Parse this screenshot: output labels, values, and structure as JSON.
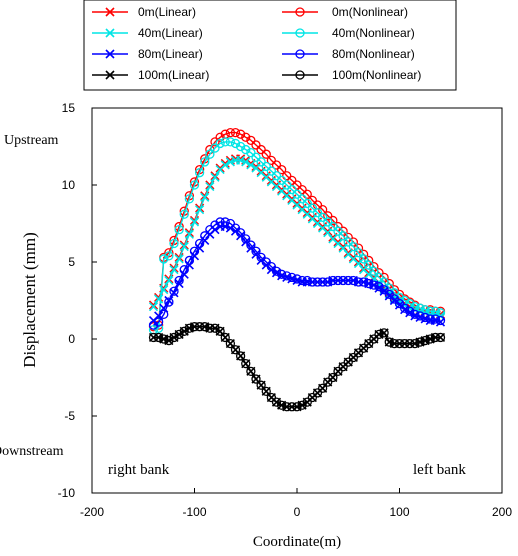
{
  "chart_data": {
    "type": "line",
    "xlabel": "Coordinate(m)",
    "ylabel": "Displacement (mm)",
    "xlim": [
      -200,
      200
    ],
    "ylim": [
      -10,
      15
    ],
    "x_ticks": [
      -200,
      -100,
      0,
      100,
      200
    ],
    "y_ticks": [
      -10,
      -5,
      0,
      5,
      10,
      15
    ],
    "grid": false,
    "legend_position": "top",
    "annotations": {
      "upstream": "Upstream",
      "downstream": "Downstream",
      "right_bank": "right bank",
      "left_bank": "left bank"
    },
    "series": [
      {
        "name": "0m(Linear)",
        "color": "#ff0000",
        "marker": "x",
        "x": [
          -140,
          -135,
          -130,
          -125,
          -120,
          -115,
          -110,
          -105,
          -100,
          -95,
          -90,
          -85,
          -80,
          -75,
          -70,
          -65,
          -60,
          -55,
          -50,
          -45,
          -40,
          -35,
          -30,
          -25,
          -20,
          -15,
          -10,
          -5,
          0,
          5,
          10,
          15,
          20,
          25,
          30,
          35,
          40,
          45,
          50,
          55,
          60,
          65,
          70,
          75,
          80,
          85,
          90,
          95,
          100,
          105,
          110,
          115,
          120,
          125,
          130,
          135,
          140
        ],
        "y": [
          2.2,
          2.7,
          3.3,
          3.9,
          4.6,
          5.3,
          6.1,
          6.9,
          7.7,
          8.5,
          9.3,
          10.0,
          10.6,
          11.1,
          11.4,
          11.6,
          11.7,
          11.7,
          11.6,
          11.4,
          11.2,
          10.9,
          10.6,
          10.3,
          10.0,
          9.7,
          9.4,
          9.1,
          8.8,
          8.5,
          8.2,
          7.9,
          7.6,
          7.3,
          7.0,
          6.6,
          6.3,
          6.0,
          5.6,
          5.3,
          5.0,
          4.6,
          4.3,
          4.0,
          3.6,
          3.3,
          3.0,
          2.7,
          2.5,
          2.3,
          2.1,
          2.0,
          1.9,
          1.8,
          1.7,
          1.7,
          1.6
        ]
      },
      {
        "name": "0m(Nonlinear)",
        "color": "#ff0000",
        "marker": "o",
        "x": [
          -140,
          -135,
          -130,
          -125,
          -120,
          -115,
          -110,
          -105,
          -100,
          -95,
          -90,
          -85,
          -80,
          -75,
          -70,
          -65,
          -60,
          -55,
          -50,
          -45,
          -40,
          -35,
          -30,
          -25,
          -20,
          -15,
          -10,
          -5,
          0,
          5,
          10,
          15,
          20,
          25,
          30,
          35,
          40,
          45,
          50,
          55,
          60,
          65,
          70,
          75,
          80,
          85,
          90,
          95,
          100,
          105,
          110,
          115,
          120,
          125,
          130,
          135,
          140
        ],
        "y": [
          0.8,
          0.9,
          5.3,
          5.6,
          6.4,
          7.3,
          8.3,
          9.3,
          10.2,
          11.0,
          11.7,
          12.3,
          12.8,
          13.1,
          13.3,
          13.4,
          13.4,
          13.3,
          13.1,
          12.9,
          12.6,
          12.3,
          12.0,
          11.6,
          11.3,
          11.0,
          10.6,
          10.3,
          10.0,
          9.7,
          9.4,
          9.0,
          8.7,
          8.4,
          8.0,
          7.7,
          7.3,
          7.0,
          6.6,
          6.3,
          5.9,
          5.5,
          5.1,
          4.7,
          4.3,
          4.0,
          3.6,
          3.2,
          2.9,
          2.6,
          2.4,
          2.2,
          2.0,
          1.9,
          1.9,
          1.8,
          1.8
        ]
      },
      {
        "name": "40m(Linear)",
        "color": "#00e5e5",
        "marker": "x",
        "x": [
          -140,
          -135,
          -130,
          -125,
          -120,
          -115,
          -110,
          -105,
          -100,
          -95,
          -90,
          -85,
          -80,
          -75,
          -70,
          -65,
          -60,
          -55,
          -50,
          -45,
          -40,
          -35,
          -30,
          -25,
          -20,
          -15,
          -10,
          -5,
          0,
          5,
          10,
          15,
          20,
          25,
          30,
          35,
          40,
          45,
          50,
          55,
          60,
          65,
          70,
          75,
          80,
          85,
          90,
          95,
          100,
          105,
          110,
          115,
          120,
          125,
          130,
          135,
          140
        ],
        "y": [
          2.1,
          2.6,
          3.2,
          3.8,
          4.5,
          5.2,
          6.0,
          6.8,
          7.6,
          8.4,
          9.2,
          9.9,
          10.5,
          11.0,
          11.3,
          11.5,
          11.6,
          11.6,
          11.5,
          11.3,
          11.1,
          10.8,
          10.5,
          10.2,
          9.9,
          9.6,
          9.3,
          9.0,
          8.7,
          8.4,
          8.1,
          7.8,
          7.5,
          7.2,
          6.9,
          6.5,
          6.2,
          5.9,
          5.5,
          5.2,
          4.9,
          4.5,
          4.2,
          3.9,
          3.5,
          3.2,
          2.9,
          2.6,
          2.4,
          2.2,
          2.0,
          1.9,
          1.8,
          1.7,
          1.6,
          1.6,
          1.5
        ]
      },
      {
        "name": "40m(Nonlinear)",
        "color": "#00e5e5",
        "marker": "o",
        "x": [
          -140,
          -135,
          -130,
          -125,
          -120,
          -115,
          -110,
          -105,
          -100,
          -95,
          -90,
          -85,
          -80,
          -75,
          -70,
          -65,
          -60,
          -55,
          -50,
          -45,
          -40,
          -35,
          -30,
          -25,
          -20,
          -15,
          -10,
          -5,
          0,
          5,
          10,
          15,
          20,
          25,
          30,
          35,
          40,
          45,
          50,
          55,
          60,
          65,
          70,
          75,
          80,
          85,
          90,
          95,
          100,
          105,
          110,
          115,
          120,
          125,
          130,
          135,
          140
        ],
        "y": [
          0.6,
          0.7,
          5.2,
          5.4,
          6.2,
          7.1,
          8.1,
          9.1,
          10.0,
          10.8,
          11.5,
          12.0,
          12.4,
          12.7,
          12.8,
          12.8,
          12.7,
          12.5,
          12.3,
          12.1,
          11.8,
          11.5,
          11.2,
          10.9,
          10.6,
          10.3,
          10.0,
          9.7,
          9.4,
          9.1,
          8.8,
          8.5,
          8.2,
          7.9,
          7.6,
          7.3,
          7.0,
          6.7,
          6.3,
          6.0,
          5.6,
          5.2,
          4.8,
          4.4,
          4.0,
          3.7,
          3.3,
          3.0,
          2.7,
          2.5,
          2.3,
          2.1,
          2.0,
          1.9,
          1.8,
          1.8,
          1.7
        ]
      },
      {
        "name": "80m(Linear)",
        "color": "#0000ff",
        "marker": "x",
        "x": [
          -140,
          -135,
          -130,
          -125,
          -120,
          -115,
          -110,
          -105,
          -100,
          -95,
          -90,
          -85,
          -80,
          -75,
          -70,
          -65,
          -60,
          -55,
          -50,
          -45,
          -40,
          -35,
          -30,
          -25,
          -20,
          -15,
          -10,
          -5,
          0,
          5,
          10,
          15,
          20,
          25,
          30,
          35,
          40,
          45,
          50,
          55,
          60,
          65,
          70,
          75,
          80,
          85,
          90,
          95,
          100,
          105,
          110,
          115,
          120,
          125,
          130,
          135,
          140
        ],
        "y": [
          1.2,
          1.5,
          2.0,
          2.5,
          3.0,
          3.6,
          4.2,
          4.8,
          5.4,
          5.9,
          6.4,
          6.8,
          7.1,
          7.3,
          7.3,
          7.2,
          7.0,
          6.7,
          6.3,
          5.9,
          5.5,
          5.1,
          4.8,
          4.5,
          4.3,
          4.1,
          4.0,
          3.9,
          3.8,
          3.7,
          3.7,
          3.7,
          3.7,
          3.7,
          3.7,
          3.8,
          3.8,
          3.8,
          3.8,
          3.8,
          3.7,
          3.7,
          3.6,
          3.5,
          3.3,
          3.1,
          2.8,
          2.5,
          2.2,
          1.9,
          1.7,
          1.5,
          1.4,
          1.3,
          1.2,
          1.2,
          1.1
        ]
      },
      {
        "name": "80m(Nonlinear)",
        "color": "#0000ff",
        "marker": "o",
        "x": [
          -140,
          -135,
          -130,
          -125,
          -120,
          -115,
          -110,
          -105,
          -100,
          -95,
          -90,
          -85,
          -80,
          -75,
          -70,
          -65,
          -60,
          -55,
          -50,
          -45,
          -40,
          -35,
          -30,
          -25,
          -20,
          -15,
          -10,
          -5,
          0,
          5,
          10,
          15,
          20,
          25,
          30,
          35,
          40,
          45,
          50,
          55,
          60,
          65,
          70,
          75,
          80,
          85,
          90,
          95,
          100,
          105,
          110,
          115,
          120,
          125,
          130,
          135,
          140
        ],
        "y": [
          0.9,
          1.1,
          1.6,
          2.4,
          3.1,
          3.8,
          4.5,
          5.1,
          5.7,
          6.2,
          6.7,
          7.1,
          7.4,
          7.6,
          7.6,
          7.5,
          7.2,
          6.9,
          6.5,
          6.1,
          5.7,
          5.3,
          5.0,
          4.7,
          4.4,
          4.2,
          4.1,
          4.0,
          3.9,
          3.8,
          3.8,
          3.7,
          3.7,
          3.7,
          3.7,
          3.8,
          3.8,
          3.8,
          3.8,
          3.8,
          3.7,
          3.7,
          3.6,
          3.5,
          3.4,
          3.2,
          2.9,
          2.6,
          2.3,
          2.0,
          1.8,
          1.6,
          1.5,
          1.4,
          1.3,
          1.3,
          1.2
        ]
      },
      {
        "name": "100m(Linear)",
        "color": "#000000",
        "marker": "x",
        "x": [
          -140,
          -135,
          -130,
          -125,
          -120,
          -115,
          -110,
          -105,
          -100,
          -95,
          -90,
          -85,
          -80,
          -75,
          -70,
          -65,
          -60,
          -55,
          -50,
          -45,
          -40,
          -35,
          -30,
          -25,
          -20,
          -15,
          -10,
          -5,
          0,
          5,
          10,
          15,
          20,
          25,
          30,
          35,
          40,
          45,
          50,
          55,
          60,
          65,
          70,
          75,
          80,
          85,
          90,
          95,
          100,
          105,
          110,
          115,
          120,
          125,
          130,
          135,
          140
        ],
        "y": [
          0.1,
          0.1,
          0.0,
          -0.1,
          0.1,
          0.3,
          0.5,
          0.7,
          0.8,
          0.8,
          0.8,
          0.7,
          0.7,
          0.5,
          0.1,
          -0.3,
          -0.7,
          -1.1,
          -1.6,
          -2.1,
          -2.6,
          -3.0,
          -3.4,
          -3.8,
          -4.1,
          -4.3,
          -4.4,
          -4.4,
          -4.4,
          -4.3,
          -4.1,
          -3.8,
          -3.5,
          -3.2,
          -2.8,
          -2.5,
          -2.1,
          -1.8,
          -1.5,
          -1.2,
          -0.9,
          -0.6,
          -0.3,
          0.0,
          0.3,
          0.4,
          -0.2,
          -0.3,
          -0.3,
          -0.3,
          -0.3,
          -0.3,
          -0.2,
          -0.1,
          0.0,
          0.1,
          0.1
        ]
      },
      {
        "name": "100m(Nonlinear)",
        "color": "#000000",
        "marker": "o",
        "x": [
          -140,
          -135,
          -130,
          -125,
          -120,
          -115,
          -110,
          -105,
          -100,
          -95,
          -90,
          -85,
          -80,
          -75,
          -70,
          -65,
          -60,
          -55,
          -50,
          -45,
          -40,
          -35,
          -30,
          -25,
          -20,
          -15,
          -10,
          -5,
          0,
          5,
          10,
          15,
          20,
          25,
          30,
          35,
          40,
          45,
          50,
          55,
          60,
          65,
          70,
          75,
          80,
          85,
          90,
          95,
          100,
          105,
          110,
          115,
          120,
          125,
          130,
          135,
          140
        ],
        "y": [
          0.1,
          0.1,
          0.0,
          -0.1,
          0.1,
          0.3,
          0.5,
          0.7,
          0.8,
          0.8,
          0.8,
          0.7,
          0.7,
          0.5,
          0.1,
          -0.3,
          -0.7,
          -1.1,
          -1.6,
          -2.1,
          -2.6,
          -3.0,
          -3.4,
          -3.8,
          -4.1,
          -4.3,
          -4.4,
          -4.4,
          -4.4,
          -4.3,
          -4.1,
          -3.8,
          -3.5,
          -3.2,
          -2.8,
          -2.5,
          -2.1,
          -1.8,
          -1.5,
          -1.2,
          -0.9,
          -0.6,
          -0.3,
          0.0,
          0.3,
          0.4,
          -0.2,
          -0.3,
          -0.3,
          -0.3,
          -0.3,
          -0.3,
          -0.2,
          -0.1,
          0.0,
          0.1,
          0.1
        ]
      }
    ]
  }
}
